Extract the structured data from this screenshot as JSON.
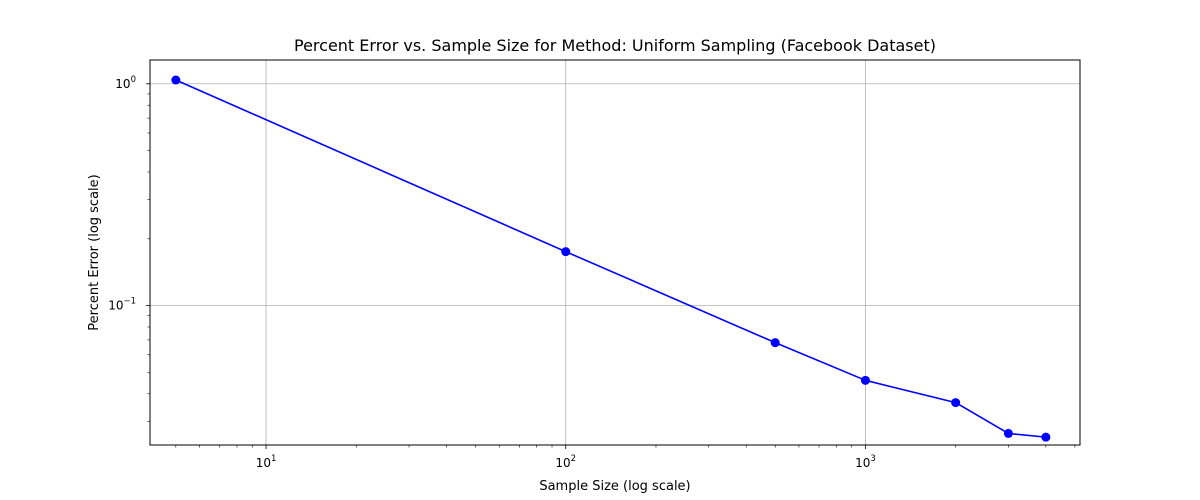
{
  "chart_data": {
    "type": "line",
    "title": "Percent Error vs. Sample Size for Method: Uniform Sampling (Facebook Dataset)",
    "xlabel": "Sample Size (log scale)",
    "ylabel": "Percent Error (log scale)",
    "x_scale": "log",
    "y_scale": "log",
    "xlim": [
      4.1,
      5200
    ],
    "ylim": [
      0.0235,
      1.28
    ],
    "x_ticks": [
      {
        "base": "10",
        "exp": "1",
        "value": 10
      },
      {
        "base": "10",
        "exp": "2",
        "value": 100
      },
      {
        "base": "10",
        "exp": "3",
        "value": 1000
      }
    ],
    "y_ticks": [
      {
        "base": "10",
        "exp": "0",
        "value": 1
      },
      {
        "base": "10",
        "exp": "−1",
        "value": 0.1
      }
    ],
    "grid": true,
    "series": [
      {
        "color": "#0000ff",
        "marker": "circle",
        "x": [
          5,
          100,
          500,
          1000,
          2000,
          3000,
          4000
        ],
        "y": [
          1.04,
          0.175,
          0.068,
          0.046,
          0.0365,
          0.0265,
          0.0255
        ]
      }
    ]
  }
}
